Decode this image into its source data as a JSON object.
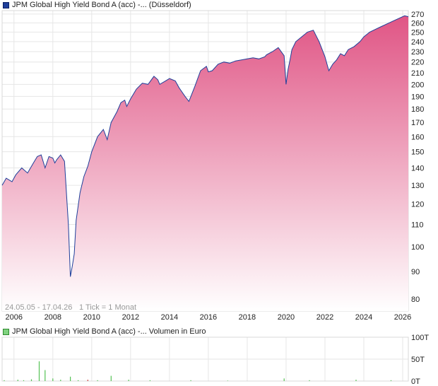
{
  "legend": {
    "price_label": "JPM Global High Yield Bond A (acc) -... (Düsseldorf)",
    "volume_label": "JPM Global High Yield Bond A (acc) -... Volumen in Euro"
  },
  "colors": {
    "line": "#1f3f9a",
    "fill_top": "#e05585",
    "fill_bottom": "#ffffff",
    "volume_bar": "#55c255",
    "volume_bar_alt": "#d04040"
  },
  "chart_data": [
    {
      "type": "area",
      "date_range_label": "24.05.05 - 17.04.26",
      "tick_note": "1 Tick = 1 Monat",
      "x_ticks": [
        "2006",
        "2008",
        "2010",
        "2012",
        "2014",
        "2016",
        "2018",
        "2020",
        "2022",
        "2024",
        "2026"
      ],
      "y_ticks": [
        80,
        90,
        100,
        110,
        120,
        130,
        140,
        150,
        160,
        170,
        180,
        190,
        200,
        210,
        220,
        230,
        240,
        250,
        260,
        270
      ],
      "y_scale": "log",
      "ylim": [
        76,
        274
      ],
      "xlim": [
        2005.39,
        2026.29
      ],
      "grid": true,
      "series": [
        {
          "x": [
            2005.39,
            2005.6,
            2005.9,
            2006.1,
            2006.4,
            2006.7,
            2007.0,
            2007.2,
            2007.4,
            2007.6,
            2007.8,
            2008.0,
            2008.1,
            2008.2,
            2008.4,
            2008.6,
            2008.8,
            2008.9,
            2009.0,
            2009.1,
            2009.2,
            2009.4,
            2009.6,
            2009.8,
            2010.0,
            2010.3,
            2010.6,
            2010.8,
            2011.0,
            2011.3,
            2011.5,
            2011.7,
            2011.8,
            2012.0,
            2012.3,
            2012.6,
            2012.9,
            2013.2,
            2013.4,
            2013.5,
            2013.8,
            2014.0,
            2014.3,
            2014.5,
            2014.8,
            2015.0,
            2015.3,
            2015.6,
            2015.9,
            2016.0,
            2016.2,
            2016.5,
            2016.8,
            2017.1,
            2017.4,
            2017.7,
            2018.0,
            2018.3,
            2018.6,
            2018.9,
            2019.0,
            2019.3,
            2019.6,
            2019.9,
            2020.0,
            2020.1,
            2020.2,
            2020.3,
            2020.5,
            2020.8,
            2021.1,
            2021.4,
            2021.7,
            2022.0,
            2022.2,
            2022.4,
            2022.6,
            2022.8,
            2023.0,
            2023.2,
            2023.5,
            2023.8,
            2024.0,
            2024.3,
            2024.6,
            2024.9,
            2025.2,
            2025.5,
            2025.8,
            2026.1,
            2026.29
          ],
          "y": [
            130,
            134,
            132,
            136,
            140,
            137,
            143,
            147,
            148,
            140,
            147,
            146,
            143,
            145,
            148,
            144,
            110,
            88,
            92,
            97,
            112,
            126,
            135,
            141,
            150,
            160,
            165,
            158,
            170,
            178,
            185,
            187,
            182,
            188,
            196,
            201,
            200,
            207,
            204,
            200,
            203,
            205,
            203,
            197,
            190,
            186,
            198,
            212,
            216,
            211,
            212,
            218,
            220,
            219,
            221,
            222,
            223,
            224,
            223,
            225,
            227,
            230,
            234,
            226,
            200,
            213,
            222,
            232,
            240,
            245,
            250,
            252,
            240,
            225,
            212,
            218,
            222,
            228,
            226,
            232,
            235,
            240,
            245,
            250,
            253,
            256,
            259,
            262,
            265,
            268,
            267
          ]
        }
      ]
    },
    {
      "type": "bar",
      "y_ticks": [
        "0T",
        "50T",
        "100T"
      ],
      "ylim": [
        0,
        100
      ],
      "series": [
        {
          "x": [
            2005.5,
            2006.2,
            2006.5,
            2006.9,
            2007.3,
            2007.6,
            2008.0,
            2008.4,
            2008.9,
            2009.3,
            2009.8,
            2010.3,
            2011.0,
            2011.9,
            2013.0,
            2015.1,
            2017.0,
            2019.9,
            2021.2,
            2023.6,
            2025.4
          ],
          "values": [
            2,
            3,
            2,
            4,
            45,
            25,
            6,
            3,
            10,
            2,
            3,
            2,
            12,
            3,
            2,
            2,
            1,
            6,
            2,
            3,
            2
          ]
        }
      ]
    }
  ]
}
